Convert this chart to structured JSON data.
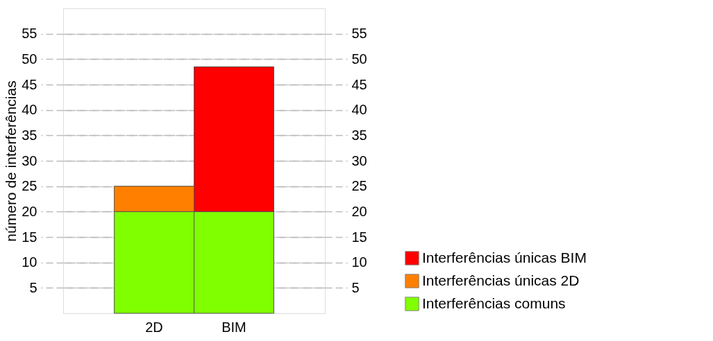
{
  "chart_data": {
    "type": "bar",
    "stacked": true,
    "ylabel": "número de interferências",
    "categories": [
      "2D",
      "BIM"
    ],
    "series": [
      {
        "name": "Interferências comuns",
        "color": "#80ff00",
        "values": [
          20,
          20
        ]
      },
      {
        "name": "Interferências únicas 2D",
        "color": "#ff8000",
        "values": [
          5,
          null
        ]
      },
      {
        "name": "Interferências únicas BIM",
        "color": "#ff0000",
        "values": [
          null,
          28.5
        ]
      }
    ],
    "ylim": [
      0,
      60
    ],
    "yticks": [
      5,
      10,
      15,
      20,
      25,
      30,
      35,
      40,
      45,
      50,
      55
    ],
    "y2lim": [
      0,
      60
    ],
    "y2ticks": [
      5,
      10,
      15,
      20,
      25,
      30,
      35,
      40,
      45,
      50,
      55
    ],
    "grid": "y",
    "legend": "bottom right"
  }
}
